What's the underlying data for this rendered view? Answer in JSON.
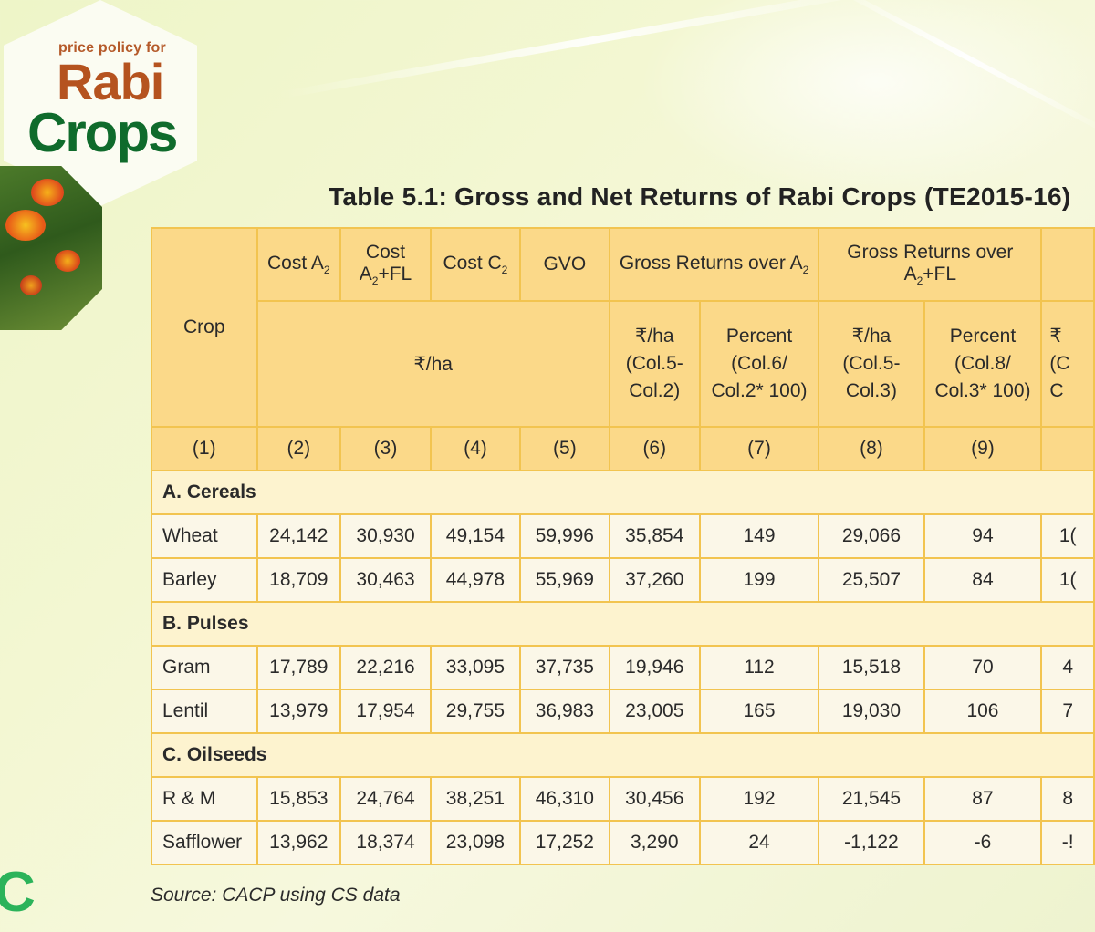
{
  "logo": {
    "subtitle": "price policy for",
    "line1": "Rabi",
    "line2": "Crops"
  },
  "side_text": "C",
  "table": {
    "title": "Table 5.1:  Gross and Net Returns of Rabi Crops (TE2015-16)",
    "headers": {
      "crop": "Crop",
      "cost_a2": "Cost A",
      "cost_a2_sub": "2",
      "cost_a2fl_top": "Cost",
      "cost_a2fl_bottom_a": "A",
      "cost_a2fl_bottom_sub": "2",
      "cost_a2fl_bottom_b": "+FL",
      "cost_c2": "Cost C",
      "cost_c2_sub": "2",
      "gvo": "GVO",
      "gross_a2": "Gross Returns over A",
      "gross_a2_sub": "2",
      "gross_a2fl_top": "Gross Returns over",
      "gross_a2fl_bottom_a": "A",
      "gross_a2fl_bottom_sub": "2",
      "gross_a2fl_bottom_b": "+FL",
      "unit": "₹/ha",
      "col6": [
        "₹/ha",
        "(Col.5-",
        "Col.2)"
      ],
      "col7": [
        "Percent",
        "(Col.6/",
        "Col.2* 100)"
      ],
      "col8": [
        "₹/ha",
        "(Col.5-",
        "Col.3)"
      ],
      "col9": [
        "Percent",
        "(Col.8/",
        "Col.3* 100)"
      ],
      "col10": [
        "₹",
        "(C",
        "C"
      ]
    },
    "column_numbers": [
      "(1)",
      "(2)",
      "(3)",
      "(4)",
      "(5)",
      "(6)",
      "(7)",
      "(8)",
      "(9)",
      ""
    ],
    "sections": [
      {
        "name": "A. Cereals",
        "rows": [
          [
            "Wheat",
            "24,142",
            "30,930",
            "49,154",
            "59,996",
            "35,854",
            "149",
            "29,066",
            "94",
            "1("
          ],
          [
            "Barley",
            "18,709",
            "30,463",
            "44,978",
            "55,969",
            "37,260",
            "199",
            "25,507",
            "84",
            "1("
          ]
        ]
      },
      {
        "name": "B. Pulses",
        "rows": [
          [
            "Gram",
            "17,789",
            "22,216",
            "33,095",
            "37,735",
            "19,946",
            "112",
            "15,518",
            "70",
            "4"
          ],
          [
            "Lentil",
            "13,979",
            "17,954",
            "29,755",
            "36,983",
            "23,005",
            "165",
            "19,030",
            "106",
            "7"
          ]
        ]
      },
      {
        "name": "C. Oilseeds",
        "rows": [
          [
            "R & M",
            "15,853",
            "24,764",
            "38,251",
            "46,310",
            "30,456",
            "192",
            "21,545",
            "87",
            "8"
          ],
          [
            "Safflower",
            "13,962",
            "18,374",
            "23,098",
            "17,252",
            "3,290",
            "24",
            "-1,122",
            "-6",
            "-!"
          ]
        ]
      }
    ],
    "source": "Source:  CACP using CS data"
  }
}
